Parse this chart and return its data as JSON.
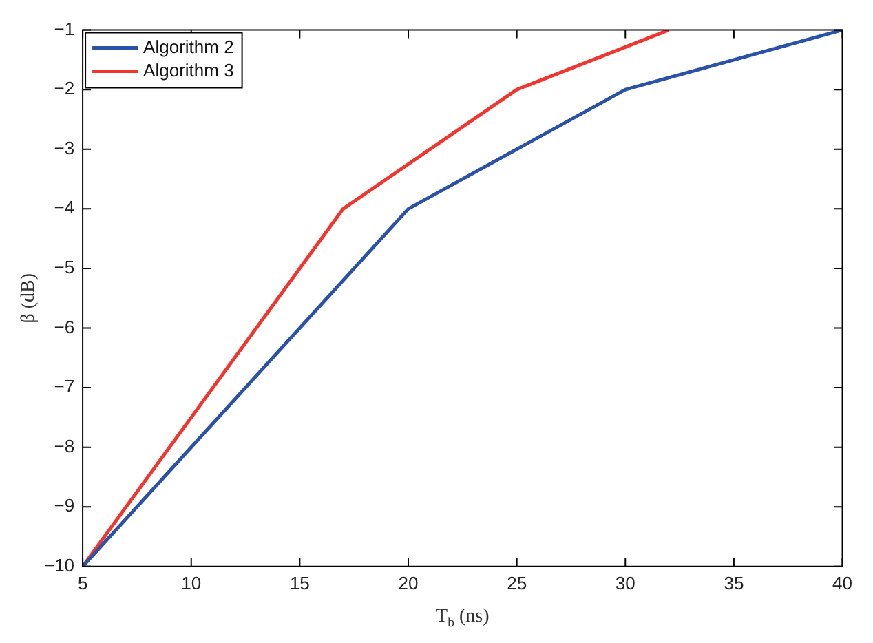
{
  "chart_data": {
    "type": "line",
    "xlabel": "T$_{b}$ (ns)",
    "ylabel": "β (dB)",
    "series": [
      {
        "name": "Algorithm 2",
        "color": "#2a52a8",
        "x": [
          5,
          20,
          30,
          40
        ],
        "values": [
          -10,
          -4,
          -2,
          -1
        ]
      },
      {
        "name": "Algorithm 3",
        "color": "#f0362e",
        "x": [
          5,
          17,
          25,
          32
        ],
        "values": [
          -10,
          -4,
          -2,
          -1
        ]
      }
    ],
    "xlim": [
      5,
      40
    ],
    "xticks": [
      5,
      10,
      15,
      20,
      25,
      30,
      35,
      40
    ],
    "ylim": [
      -10,
      -1
    ],
    "yticks": [
      -10,
      -9,
      -8,
      -7,
      -6,
      -5,
      -4,
      -3,
      -2,
      -1
    ],
    "grid": false,
    "legend": "top left",
    "marker": "none",
    "line_style": "solid"
  }
}
